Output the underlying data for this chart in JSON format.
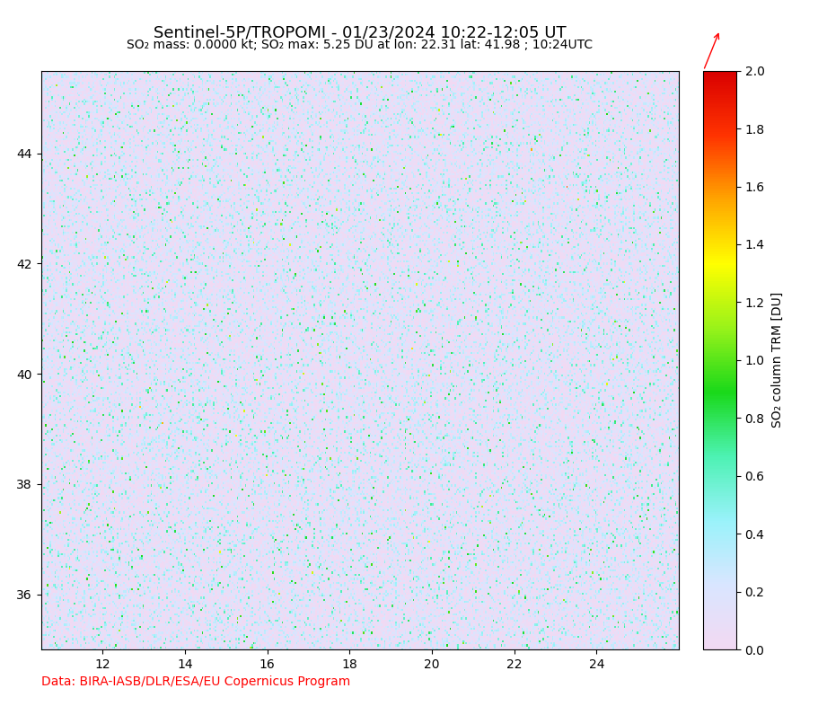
{
  "title1": "Sentinel-5P/TROPOMI - 01/23/2024 10:22-12:05 UT",
  "title2": "SO₂ mass: 0.0000 kt; SO₂ max: 5.25 DU at lon: 22.31 lat: 41.98 ; 10:24UTC",
  "colorbar_label": "SO₂ column TRM [DU]",
  "attribution": "Data: BIRA-IASB/DLR/ESA/EU Copernicus Program",
  "lon_min": 10.5,
  "lon_max": 26.0,
  "lat_min": 35.0,
  "lat_max": 45.5,
  "xticks": [
    12,
    14,
    16,
    18,
    20,
    22,
    24
  ],
  "yticks": [
    36,
    38,
    40,
    42,
    44
  ],
  "clim_min": 0.0,
  "clim_max": 2.0,
  "background_color": "#c8b4d2",
  "map_bg": "#d4c0e0",
  "noise_seed": 42,
  "fig_width": 9.11,
  "fig_height": 7.86,
  "dpi": 100
}
